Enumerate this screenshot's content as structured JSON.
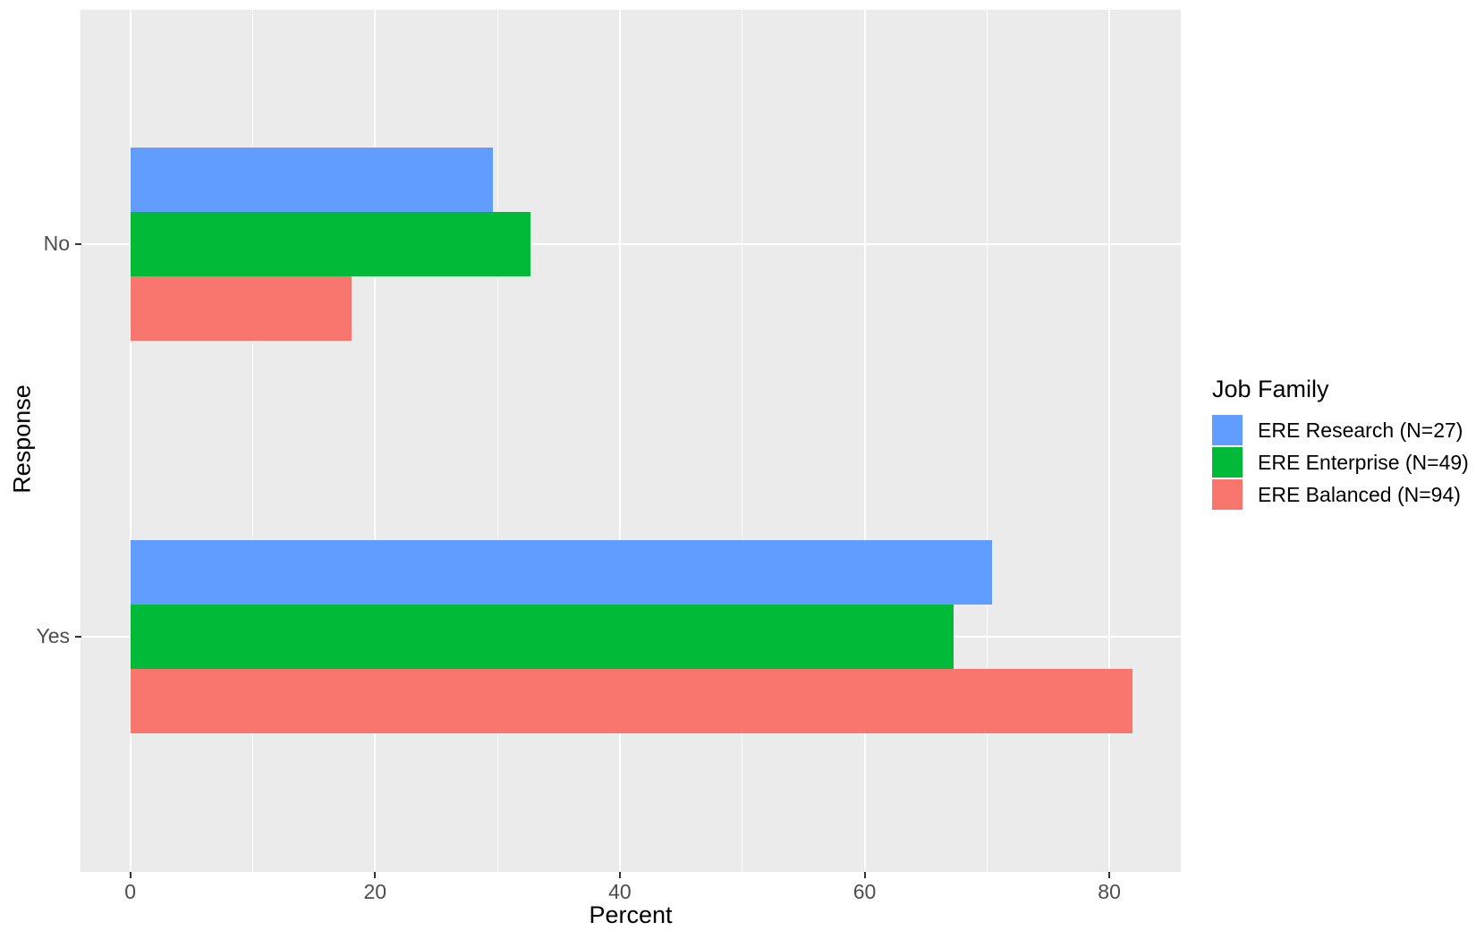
{
  "figure": {
    "background": "#FFFFFF",
    "panel_background": "#EBEBEB",
    "grid_color": "#FFFFFF",
    "tick_mark_color": "#333333",
    "axis_text_color": "#4D4D4D",
    "axis_title_color": "#000000"
  },
  "chart_data": {
    "type": "bar",
    "orientation": "horizontal",
    "title": "",
    "xlabel": "Percent",
    "ylabel": "Response",
    "categories": [
      "No",
      "Yes"
    ],
    "series": [
      {
        "name": "ERE Research (N=27)",
        "color": "#619CFF",
        "values": [
          29.6,
          70.4
        ]
      },
      {
        "name": "ERE Enterprise (N=49)",
        "color": "#00BA38",
        "values": [
          32.7,
          67.3
        ]
      },
      {
        "name": "ERE Balanced (N=94)",
        "color": "#F8766D",
        "values": [
          18.1,
          81.9
        ]
      }
    ],
    "xlim": [
      0,
      86
    ],
    "x_major_ticks": [
      0,
      20,
      40,
      60,
      80
    ],
    "x_minor_ticks": [
      10,
      30,
      50,
      70
    ],
    "grid": true,
    "legend_title": "Job Family",
    "legend_position": "right"
  }
}
